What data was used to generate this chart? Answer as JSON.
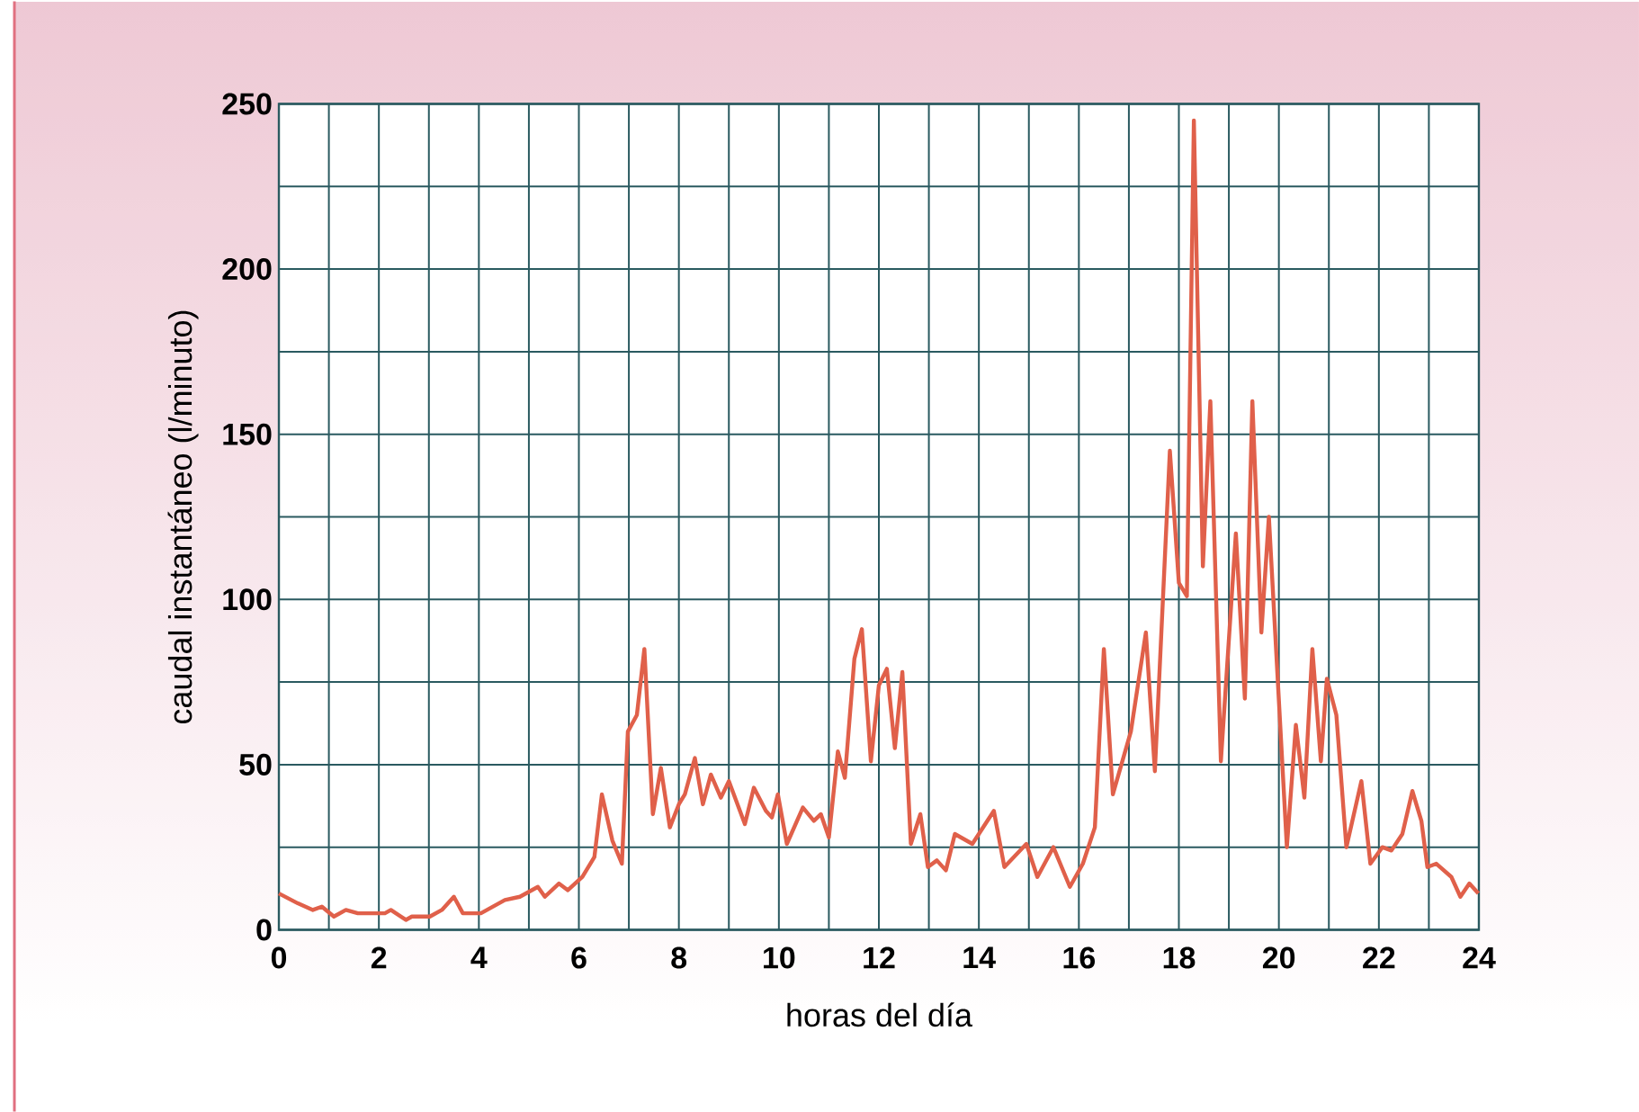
{
  "chart_data": {
    "type": "line",
    "xlabel": "horas del día",
    "ylabel": "caudal instantáneo (l/minuto)",
    "xlim": [
      0,
      24
    ],
    "ylim": [
      0,
      250
    ],
    "xticks": [
      0,
      {
        "value": 1,
        "label": null
      },
      2,
      {
        "value": 3,
        "label": null
      },
      4,
      {
        "value": 5,
        "label": null
      },
      6,
      {
        "value": 7,
        "label": null
      },
      8,
      {
        "value": 9,
        "label": null
      },
      10,
      {
        "value": 11,
        "label": null
      },
      12,
      {
        "value": 13,
        "label": null
      },
      14,
      {
        "value": 15,
        "label": null
      },
      16,
      {
        "value": 17,
        "label": null
      },
      18,
      {
        "value": 19,
        "label": null
      },
      20,
      {
        "value": 21,
        "label": null
      },
      22,
      {
        "value": 23,
        "label": null
      },
      24
    ],
    "yticks": [
      0,
      {
        "value": 25,
        "label": null
      },
      50,
      {
        "value": 75,
        "label": null
      },
      100,
      {
        "value": 125,
        "label": null
      },
      150,
      {
        "value": 175,
        "label": null
      },
      200,
      {
        "value": 225,
        "label": null
      },
      250
    ],
    "grid": true,
    "series": [
      {
        "color": "#e0604a",
        "x": [
          0,
          0.38,
          0.68,
          0.86,
          1.1,
          1.34,
          1.58,
          2.12,
          2.24,
          2.54,
          2.66,
          3.02,
          3.26,
          3.5,
          3.68,
          3.86,
          4.04,
          4.52,
          4.82,
          5.18,
          5.32,
          5.6,
          5.78,
          6.07,
          6.31,
          6.46,
          6.67,
          6.86,
          6.98,
          7.16,
          7.31,
          7.48,
          7.64,
          7.82,
          8.0,
          8.12,
          8.32,
          8.48,
          8.64,
          8.84,
          9.0,
          9.32,
          9.5,
          9.74,
          9.86,
          9.98,
          10.16,
          10.48,
          10.7,
          10.84,
          11.0,
          11.18,
          11.32,
          11.51,
          11.66,
          11.84,
          12.0,
          12.16,
          12.32,
          12.47,
          12.64,
          12.83,
          12.98,
          13.16,
          13.34,
          13.52,
          13.87,
          14.3,
          14.51,
          14.95,
          15.17,
          15.49,
          15.82,
          16.08,
          16.32,
          16.5,
          16.68,
          17.04,
          17.34,
          17.52,
          17.82,
          18.0,
          18.16,
          18.3,
          18.48,
          18.63,
          18.84,
          19.14,
          19.32,
          19.47,
          19.65,
          19.8,
          20.16,
          20.34,
          20.51,
          20.67,
          20.84,
          20.96,
          21.15,
          21.35,
          21.65,
          21.83,
          22.07,
          22.25,
          22.47,
          22.67,
          22.85,
          22.97,
          23.15,
          23.45,
          23.63,
          23.81,
          23.99
        ],
        "values": [
          11,
          8,
          6,
          7,
          4,
          6,
          5,
          5,
          6,
          3,
          4,
          4,
          6,
          10,
          5,
          5,
          5,
          9,
          10,
          13,
          10,
          14,
          12,
          16,
          22,
          41,
          27,
          20,
          60,
          65,
          85,
          35,
          49,
          31,
          38,
          41,
          52,
          38,
          47,
          40,
          45,
          32,
          43,
          36,
          34,
          41,
          26,
          37,
          33,
          35,
          28,
          54,
          46,
          82,
          91,
          51,
          74,
          79,
          55,
          78,
          26,
          35,
          19,
          21,
          18,
          29,
          26,
          36,
          19,
          26,
          16,
          25,
          13,
          20,
          31,
          85,
          41,
          60,
          90,
          48,
          145,
          105,
          101,
          245,
          110,
          160,
          51,
          120,
          70,
          160,
          90,
          125,
          25,
          62,
          40,
          85,
          51,
          76,
          65,
          25,
          45,
          20,
          25,
          24,
          29,
          42,
          33,
          19,
          20,
          16,
          10,
          14,
          11
        ]
      }
    ]
  }
}
